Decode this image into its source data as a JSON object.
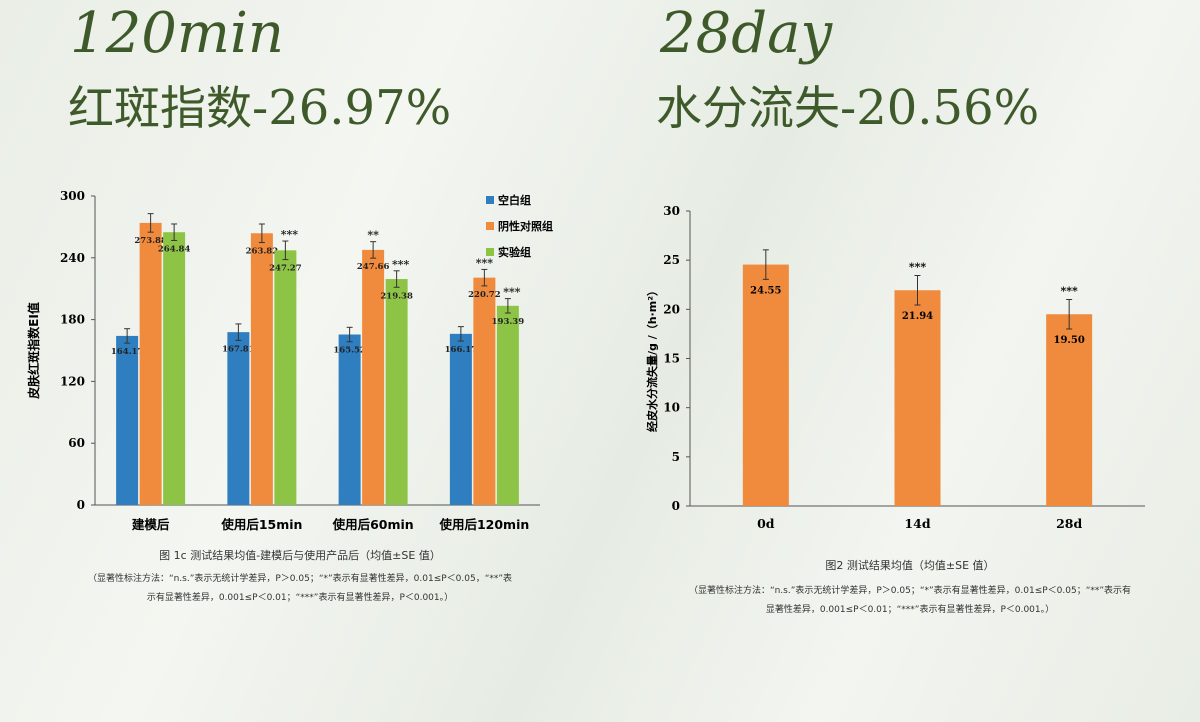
{
  "left": {
    "headline": "120min",
    "subheadline_text": "红斑指数",
    "subheadline_value": "-26.97%",
    "caption_title": "图 1c   测试结果均值-建模后与使用产品后（均值±SE 值）",
    "caption_note_1": "（显著性标注方法：“n.s.”表示无统计学差异，P＞0.05；“*”表示有显著性差异，0.01≤P＜0.05，“**”表",
    "caption_note_2": "示有显著性差异，0.001≤P＜0.01；“***”表示有显著性差异，P＜0.001。）"
  },
  "right": {
    "headline": "28day",
    "subheadline_text": "水分流失",
    "subheadline_value": "-20.56%",
    "caption_title": "图2   测试结果均值（均值±SE 值）",
    "caption_note_1": "（显著性标注方法：“n.s.”表示无统计学差异，P＞0.05；“*”表示有显著性差异，0.01≤P＜0.05；“**”表示有",
    "caption_note_2": "显著性差异，0.001≤P＜0.01；“***”表示有显著性差异，P＜0.001。）"
  },
  "colors": {
    "blank": "#2f7ebf",
    "negative": "#f08a3c",
    "experiment": "#8dc446",
    "single": "#f08a3c",
    "headline": "#3f5a2a"
  },
  "chart_data": [
    {
      "type": "bar",
      "categories": [
        "建模后",
        "使用后15min",
        "使用后60min",
        "使用后120min"
      ],
      "ylabel": "皮肤红斑指数EI值",
      "ylim": [
        0,
        300
      ],
      "yticks": [
        "0",
        "60",
        "120",
        "180",
        "240",
        "300"
      ],
      "legend_position": "top-right",
      "series": [
        {
          "name": "空白组",
          "values": [
            164.17,
            167.81,
            165.52,
            166.17
          ],
          "labels": [
            "164.17",
            "167.81",
            "165.52",
            "166.17"
          ],
          "errors": [
            7,
            8,
            7,
            7
          ],
          "sig": [
            "",
            "",
            "",
            ""
          ]
        },
        {
          "name": "阴性对照组",
          "values": [
            273.88,
            263.82,
            247.66,
            220.72
          ],
          "labels": [
            "273.88",
            "263.82",
            "247.66",
            "220.72"
          ],
          "errors": [
            9,
            9,
            8,
            8
          ],
          "sig": [
            "",
            "",
            "**",
            "***"
          ]
        },
        {
          "name": "实验组",
          "values": [
            264.84,
            247.27,
            219.38,
            193.39
          ],
          "labels": [
            "264.84",
            "247.27",
            "219.38",
            "193.39"
          ],
          "errors": [
            8,
            9,
            8,
            7
          ],
          "sig": [
            "",
            "***",
            "***",
            "***"
          ]
        }
      ]
    },
    {
      "type": "bar",
      "categories": [
        "0d",
        "14d",
        "28d"
      ],
      "ylabel": "经皮水分流失量/g /（h·m²）",
      "ylim": [
        0,
        30
      ],
      "yticks": [
        "0",
        "5",
        "10",
        "15",
        "20",
        "25",
        "30"
      ],
      "series": [
        {
          "values": [
            24.55,
            21.94,
            19.5
          ],
          "labels": [
            "24.55",
            "21.94",
            "19.50"
          ],
          "errors": [
            1.5,
            1.5,
            1.5
          ],
          "sig": [
            "",
            "***",
            "***"
          ]
        }
      ]
    }
  ]
}
